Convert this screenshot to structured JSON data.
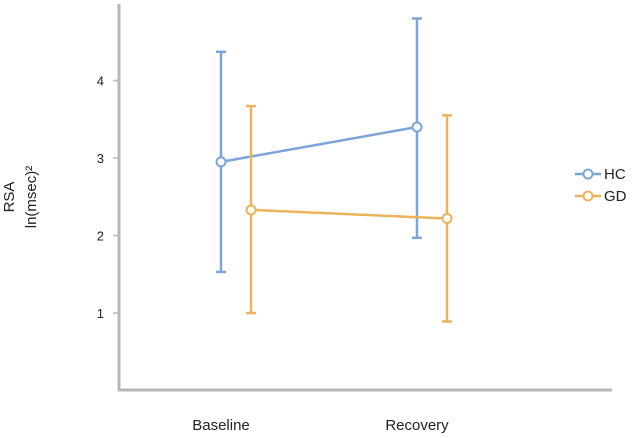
{
  "chart_data": {
    "type": "line",
    "categories": [
      "Baseline",
      "Recovery"
    ],
    "ylabel_line1": "RSA",
    "ylabel_line2": "ln(msec)²",
    "yticks": [
      1,
      2,
      3,
      4
    ],
    "ylim": [
      0,
      5
    ],
    "grid": false,
    "legend_position": "right",
    "series": [
      {
        "name": "HC",
        "color": "#7ba3dc",
        "values": [
          2.95,
          3.4
        ],
        "lower": [
          1.53,
          1.97
        ],
        "upper": [
          4.37,
          4.8
        ]
      },
      {
        "name": "GD",
        "color": "#ebb35c",
        "values": [
          2.33,
          2.22
        ],
        "lower": [
          1.0,
          0.89
        ],
        "upper": [
          3.67,
          3.55
        ]
      }
    ]
  }
}
